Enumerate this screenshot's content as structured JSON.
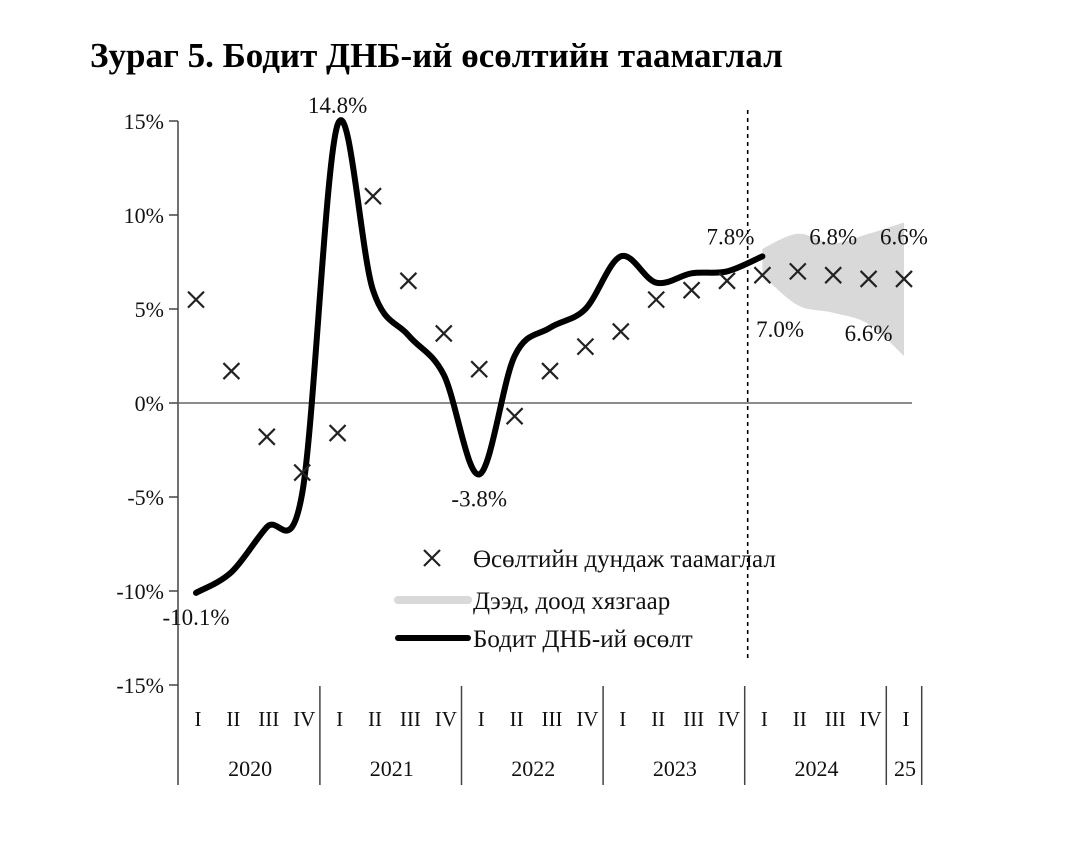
{
  "title": "Зураг 5. Бодит ДНБ-ий өсөлтийн таамаглал",
  "chart_data": {
    "type": "line",
    "title": "Зураг 5. Бодит ДНБ-ий өсөлтийн таамаглал",
    "xlabel": "",
    "ylabel": "",
    "ylim": [
      -15,
      15
    ],
    "y_ticks": [
      15,
      10,
      5,
      0,
      -5,
      -10,
      -15
    ],
    "y_tick_labels": [
      "15%",
      "10%",
      "5%",
      "0%",
      "-5%",
      "-10%",
      "-15%"
    ],
    "quarter_labels": [
      "I",
      "II",
      "III",
      "IV",
      "I",
      "II",
      "III",
      "IV",
      "I",
      "II",
      "III",
      "IV",
      "I",
      "II",
      "III",
      "IV",
      "I",
      "II",
      "III",
      "IV",
      "I"
    ],
    "years": [
      {
        "label": "2020",
        "start": 0,
        "end": 3
      },
      {
        "label": "2021",
        "start": 4,
        "end": 7
      },
      {
        "label": "2022",
        "start": 8,
        "end": 11
      },
      {
        "label": "2023",
        "start": 12,
        "end": 15
      },
      {
        "label": "2024",
        "start": 16,
        "end": 19
      },
      {
        "label": "25",
        "start": 20,
        "end": 20
      }
    ],
    "legend_position": "bottom-center",
    "series": [
      {
        "name": "Өсөлтийн дундаж таамаглал",
        "marker": "x",
        "values": [
          5.5,
          1.7,
          -1.8,
          -3.7,
          -1.6,
          11.0,
          6.5,
          3.7,
          1.8,
          -0.7,
          1.7,
          3.0,
          3.8,
          5.5,
          6.0,
          6.5,
          6.8,
          7.0,
          6.8,
          6.6,
          6.6
        ]
      },
      {
        "name": "Дээд, доод хязгаар",
        "band_x": [
          16,
          17,
          18,
          19,
          20
        ],
        "upper": [
          8.2,
          9.0,
          8.5,
          9.0,
          9.6
        ],
        "lower": [
          6.8,
          5.2,
          4.8,
          4.2,
          2.5
        ]
      },
      {
        "name": "Бодит ДНБ-ий өсөлт",
        "values": [
          -10.1,
          -9.0,
          -6.6,
          -4.8,
          14.8,
          6.0,
          3.6,
          1.5,
          -3.8,
          2.5,
          4.0,
          5.0,
          7.8,
          6.4,
          6.9,
          7.0,
          7.8
        ]
      }
    ],
    "annotations": [
      {
        "text": "14.8%",
        "x": 4,
        "y": 14.8,
        "pos": "above"
      },
      {
        "text": "-3.8%",
        "x": 8,
        "y": -3.8,
        "pos": "below"
      },
      {
        "text": "-10.1%",
        "x": 0,
        "y": -10.1,
        "pos": "below"
      },
      {
        "text": "7.8%",
        "x": 16,
        "y": 7.8,
        "pos": "above-left"
      },
      {
        "text": "7.0%",
        "x": 16.5,
        "y": 5.2,
        "pos": "below"
      },
      {
        "text": "6.8%",
        "x": 18,
        "y": 7.8,
        "pos": "above"
      },
      {
        "text": "6.6%",
        "x": 19,
        "y": 5.0,
        "pos": "below"
      },
      {
        "text": "6.6%",
        "x": 20,
        "y": 7.8,
        "pos": "above"
      }
    ],
    "forecast_divider_x": 15.5,
    "colors": {
      "actual": "#000000",
      "band": "#d9d9d9",
      "marker": "#222222",
      "axis": "#444444"
    }
  }
}
